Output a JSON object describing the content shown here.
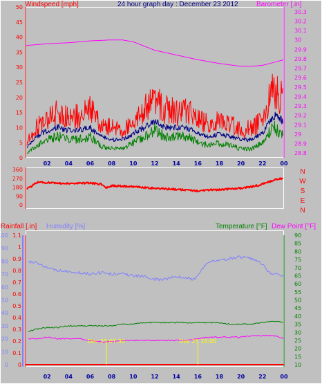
{
  "chart_data": [
    {
      "type": "line",
      "panel": "wind-baro",
      "title": "24 hour graph day : December 23 2012",
      "ylabel_left": "Windspeed [mph]",
      "ylabel_right": "Barometer [.in]",
      "x_ticks": [
        "02",
        "04",
        "06",
        "08",
        "10",
        "12",
        "14",
        "16",
        "18",
        "20",
        "22",
        "00"
      ],
      "left_ticks": [
        0,
        5,
        10,
        15,
        20,
        25,
        30,
        35,
        40,
        45,
        50
      ],
      "right_ticks": [
        "28.8",
        "28.9",
        "29",
        "29.1",
        "29.2",
        "29.3",
        "29.4",
        "29.5",
        "29.6",
        "29.7",
        "29.8",
        "29.9",
        "30",
        "30.1",
        "30.2",
        "30.3"
      ],
      "ylim_left": [
        0,
        50
      ],
      "ylim_right": [
        28.75,
        30.35
      ],
      "series": [
        {
          "key": "barometer",
          "color": "#ff00ff",
          "axis": "right",
          "x": [
            0,
            2,
            4,
            6,
            8,
            9,
            10,
            12,
            14,
            16,
            18,
            20,
            21,
            22,
            23,
            24
          ],
          "y": [
            29.94,
            29.96,
            29.97,
            29.99,
            30.0,
            30.0,
            29.98,
            29.89,
            29.84,
            29.79,
            29.75,
            29.72,
            29.72,
            29.73,
            29.76,
            29.79
          ]
        },
        {
          "key": "gust",
          "color": "#ff0000",
          "axis": "left",
          "x": [
            0,
            1,
            2,
            3,
            4,
            5,
            6,
            7,
            8,
            9,
            10,
            11,
            12,
            13,
            14,
            15,
            16,
            17,
            18,
            19,
            20,
            21,
            22,
            23,
            24
          ],
          "y": [
            5,
            10,
            13,
            15,
            13,
            14,
            16,
            11,
            10,
            9,
            12,
            16,
            19,
            16,
            15,
            16,
            13,
            11,
            12,
            11,
            9,
            10,
            12,
            23,
            19
          ]
        },
        {
          "key": "avg_wind",
          "color": "#000080",
          "axis": "left",
          "x": [
            0,
            1,
            2,
            3,
            4,
            5,
            6,
            7,
            8,
            9,
            10,
            11,
            12,
            13,
            14,
            15,
            16,
            17,
            18,
            19,
            20,
            21,
            22,
            23,
            24
          ],
          "y": [
            3,
            7,
            9,
            10,
            9,
            9,
            10,
            7,
            6,
            6,
            8,
            10,
            12,
            10,
            10,
            10,
            8,
            7,
            8,
            7,
            6,
            6,
            8,
            14,
            12
          ]
        },
        {
          "key": "wind_min",
          "color": "#008000",
          "axis": "left",
          "x": [
            0,
            1,
            2,
            3,
            4,
            5,
            6,
            7,
            8,
            9,
            10,
            11,
            12,
            13,
            14,
            15,
            16,
            17,
            18,
            19,
            20,
            21,
            22,
            23,
            24
          ],
          "y": [
            1,
            4,
            6,
            7,
            6,
            6,
            7,
            4,
            3,
            3,
            5,
            7,
            9,
            7,
            7,
            7,
            5,
            4,
            5,
            4,
            3,
            3,
            5,
            10,
            8
          ]
        }
      ]
    },
    {
      "type": "line",
      "panel": "wind-direction",
      "left_ticks": [
        0,
        90,
        180,
        270,
        360
      ],
      "compass": [
        "N",
        "W",
        "S",
        "E",
        "N"
      ],
      "ylim": [
        0,
        360
      ],
      "series": [
        {
          "key": "direction",
          "color": "#ff0000",
          "x": [
            0,
            0.5,
            1,
            2,
            3,
            4,
            5,
            6,
            7,
            7.5,
            8,
            9,
            10,
            11,
            12,
            13,
            14,
            15,
            16,
            17,
            18,
            19,
            20,
            21,
            22,
            23,
            24
          ],
          "y": [
            160,
            185,
            230,
            225,
            220,
            218,
            220,
            222,
            210,
            170,
            195,
            190,
            185,
            175,
            168,
            162,
            158,
            150,
            140,
            150,
            155,
            162,
            170,
            185,
            210,
            250,
            275
          ]
        }
      ]
    },
    {
      "type": "line",
      "panel": "rain-hum-temp",
      "ylabel_rain": "Rainfall [.in]",
      "ylabel_humidity": "Humidity [%]",
      "ylabel_temp": "Temperature [°F]",
      "ylabel_dew": "Dew Point [°F]",
      "x_ticks": [
        "02",
        "04",
        "06",
        "08",
        "10",
        "12",
        "14",
        "16",
        "18",
        "20",
        "22",
        "00"
      ],
      "humidity_ticks": [
        0,
        10,
        20,
        30,
        40,
        50,
        60,
        70,
        80,
        90,
        100
      ],
      "rain_ticks": [
        "0",
        "0.1",
        "0.2",
        "0.3",
        "0.4",
        "0.5",
        "0.6",
        "0.7",
        "0.8",
        "0.9",
        "1",
        "1.1"
      ],
      "temp_ticks": [
        10,
        15,
        20,
        25,
        30,
        35,
        40,
        45,
        50,
        55,
        60,
        65,
        70,
        75,
        80,
        85,
        90
      ],
      "ylim_humidity": [
        0,
        100
      ],
      "ylim_temp": [
        10,
        90
      ],
      "series": [
        {
          "key": "humidity",
          "color": "#8080ff",
          "axis": "humidity",
          "x": [
            0,
            1,
            2,
            3,
            4,
            5,
            6,
            7,
            8,
            9,
            10,
            11,
            12,
            13,
            14,
            15,
            15.5,
            16,
            16.5,
            17,
            18,
            19,
            20,
            21,
            22,
            22.5,
            23,
            24
          ],
          "y": [
            80,
            79,
            75,
            73,
            72,
            71,
            70,
            71,
            70,
            70,
            69,
            68,
            66,
            66,
            68,
            67,
            66,
            68,
            75,
            80,
            80,
            82,
            83,
            82,
            78,
            72,
            70,
            69
          ]
        },
        {
          "key": "temperature",
          "color": "#008000",
          "axis": "temp",
          "x": [
            0,
            1,
            2,
            3,
            4,
            5,
            6,
            7,
            8,
            9,
            10,
            11,
            12,
            13,
            14,
            15,
            16,
            17,
            18,
            19,
            20,
            21,
            22,
            23,
            24
          ],
          "y": [
            30,
            32,
            33,
            33,
            34,
            34,
            34,
            34,
            34,
            35,
            35,
            36,
            36,
            36,
            36,
            36,
            36,
            36,
            36,
            35,
            35,
            35,
            36,
            37,
            36
          ]
        },
        {
          "key": "dew_point",
          "color": "#ff00ff",
          "axis": "temp",
          "x": [
            0,
            1,
            2,
            3,
            4,
            5,
            6,
            7,
            8,
            9,
            10,
            11,
            12,
            13,
            14,
            15,
            16,
            17,
            18,
            19,
            20,
            21,
            22,
            23,
            24
          ],
          "y": [
            26,
            26,
            27,
            26,
            26,
            26,
            25,
            24,
            24,
            25,
            25,
            25,
            25,
            25,
            25,
            25,
            26,
            27,
            27,
            27,
            27,
            28,
            28,
            28,
            26
          ]
        },
        {
          "key": "rainfall",
          "color": "#ff0000",
          "axis": "rain",
          "x": [
            0,
            24
          ],
          "y": [
            0,
            0
          ]
        }
      ],
      "annotations": [
        {
          "key": "ann1",
          "x": 7.5,
          "text": "Dec 23 07:30"
        },
        {
          "key": "ann2",
          "x": 16.0,
          "text": "Dec 23 16:00"
        }
      ]
    }
  ]
}
